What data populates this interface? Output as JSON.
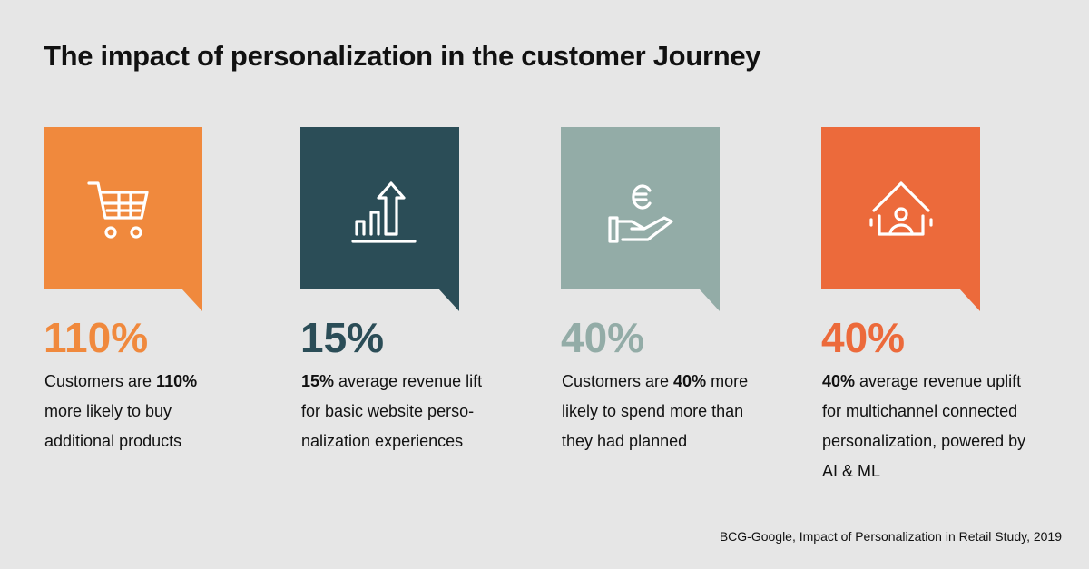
{
  "title": "The impact of personalization in the customer Journey",
  "cards": [
    {
      "color": "#f0893d",
      "stat": "110%",
      "description": [
        {
          "text": "Customers are ",
          "bold": false
        },
        {
          "text": "110%",
          "bold": true
        },
        {
          "text": " more likely to buy additional products",
          "bold": false
        }
      ]
    },
    {
      "color": "#2b4d57",
      "stat": "15%",
      "description": [
        {
          "text": "15%",
          "bold": true
        },
        {
          "text": " average revenue lift for basic website perso­nalization experiences",
          "bold": false
        }
      ]
    },
    {
      "color": "#93aca7",
      "stat": "40%",
      "description": [
        {
          "text": "Customers are ",
          "bold": false
        },
        {
          "text": "40%",
          "bold": true
        },
        {
          "text": " more likely to spend more than they had planned",
          "bold": false
        }
      ]
    },
    {
      "color": "#ec6a3b",
      "stat": "40%",
      "description": [
        {
          "text": "40%",
          "bold": true
        },
        {
          "text": " average revenue uplift for multichannel connected personalization, powered by AI & ML",
          "bold": false
        }
      ]
    }
  ],
  "source": "BCG-Google, Impact of Personalization in Retail Study, 2019"
}
